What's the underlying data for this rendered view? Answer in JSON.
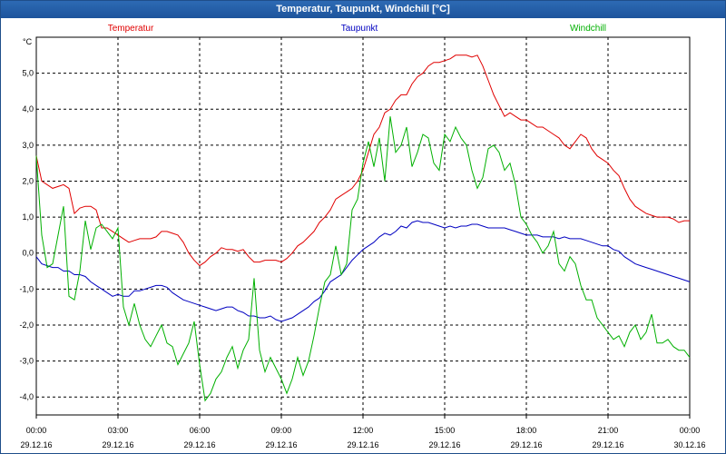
{
  "window": {
    "title": "Temperatur, Taupunkt, Windchill [°C]"
  },
  "chart_data": {
    "type": "line",
    "title": "Temperatur, Taupunkt, Windchill [°C]",
    "ylabel": "°C",
    "xlabel": "",
    "ylim": [
      -4.5,
      6.0
    ],
    "xlim": [
      0,
      24
    ],
    "grid": true,
    "yticks": [
      "5,0",
      "4,0",
      "3,0",
      "2,0",
      "1,0",
      "0,0",
      "-1,0",
      "-2,0",
      "-3,0",
      "-4,0"
    ],
    "ytick_values": [
      5,
      4,
      3,
      2,
      1,
      0,
      -1,
      -2,
      -3,
      -4
    ],
    "xticks": [
      {
        "time": "00:00",
        "date": "29.12.16",
        "hour": 0
      },
      {
        "time": "03:00",
        "date": "29.12.16",
        "hour": 3
      },
      {
        "time": "06:00",
        "date": "29.12.16",
        "hour": 6
      },
      {
        "time": "09:00",
        "date": "29.12.16",
        "hour": 9
      },
      {
        "time": "12:00",
        "date": "29.12.16",
        "hour": 12
      },
      {
        "time": "15:00",
        "date": "29.12.16",
        "hour": 15
      },
      {
        "time": "18:00",
        "date": "29.12.16",
        "hour": 18
      },
      {
        "time": "21:00",
        "date": "29.12.16",
        "hour": 21
      },
      {
        "time": "00:00",
        "date": "30.12.16",
        "hour": 24
      }
    ],
    "series": [
      {
        "name": "Temperatur",
        "color": "#e00000",
        "x": [
          0,
          0.2,
          0.4,
          0.6,
          0.8,
          1.0,
          1.2,
          1.4,
          1.6,
          1.8,
          2.0,
          2.2,
          2.4,
          2.6,
          2.8,
          3.0,
          3.2,
          3.4,
          3.6,
          3.8,
          4.0,
          4.2,
          4.4,
          4.6,
          4.8,
          5.0,
          5.2,
          5.4,
          5.6,
          5.8,
          6.0,
          6.2,
          6.4,
          6.6,
          6.8,
          7.0,
          7.2,
          7.4,
          7.6,
          7.8,
          8.0,
          8.2,
          8.4,
          8.6,
          8.8,
          9.0,
          9.2,
          9.4,
          9.6,
          9.8,
          10.0,
          10.2,
          10.4,
          10.6,
          10.8,
          11.0,
          11.2,
          11.4,
          11.6,
          11.8,
          12.0,
          12.2,
          12.4,
          12.6,
          12.8,
          13.0,
          13.2,
          13.4,
          13.6,
          13.8,
          14.0,
          14.2,
          14.4,
          14.6,
          14.8,
          15.0,
          15.2,
          15.4,
          15.6,
          15.8,
          16.0,
          16.2,
          16.4,
          16.6,
          16.8,
          17.0,
          17.2,
          17.4,
          17.6,
          17.8,
          18.0,
          18.2,
          18.4,
          18.6,
          18.8,
          19.0,
          19.2,
          19.4,
          19.6,
          19.8,
          20.0,
          20.2,
          20.4,
          20.6,
          20.8,
          21.0,
          21.2,
          21.4,
          21.6,
          21.8,
          22.0,
          22.2,
          22.4,
          22.6,
          22.8,
          23.0,
          23.2,
          23.4,
          23.6,
          23.8,
          24.0
        ],
        "values": [
          2.7,
          2.0,
          1.9,
          1.8,
          1.85,
          1.9,
          1.8,
          1.1,
          1.25,
          1.3,
          1.3,
          1.2,
          0.7,
          0.7,
          0.6,
          0.5,
          0.4,
          0.3,
          0.35,
          0.4,
          0.4,
          0.4,
          0.45,
          0.6,
          0.6,
          0.55,
          0.5,
          0.3,
          0.0,
          -0.2,
          -0.35,
          -0.25,
          -0.1,
          0.0,
          0.15,
          0.1,
          0.1,
          0.05,
          0.1,
          -0.1,
          -0.25,
          -0.25,
          -0.2,
          -0.2,
          -0.2,
          -0.25,
          -0.15,
          0.0,
          0.2,
          0.3,
          0.45,
          0.6,
          0.85,
          1.0,
          1.2,
          1.5,
          1.6,
          1.7,
          1.8,
          2.0,
          2.3,
          2.8,
          3.3,
          3.5,
          3.9,
          4.0,
          4.25,
          4.4,
          4.4,
          4.7,
          4.9,
          5.0,
          5.2,
          5.3,
          5.3,
          5.35,
          5.4,
          5.5,
          5.5,
          5.5,
          5.45,
          5.5,
          5.2,
          4.8,
          4.4,
          4.1,
          3.8,
          3.9,
          3.8,
          3.7,
          3.7,
          3.6,
          3.5,
          3.5,
          3.4,
          3.3,
          3.2,
          3.0,
          2.9,
          3.1,
          3.3,
          3.2,
          2.9,
          2.7,
          2.6,
          2.5,
          2.3,
          2.15,
          1.8,
          1.5,
          1.3,
          1.2,
          1.1,
          1.05,
          1.0,
          1.0,
          1.0,
          0.95,
          0.85,
          0.9,
          0.9
        ]
      },
      {
        "name": "Taupunkt",
        "color": "#0000c0",
        "x": [
          0,
          0.2,
          0.4,
          0.6,
          0.8,
          1.0,
          1.2,
          1.4,
          1.6,
          1.8,
          2.0,
          2.2,
          2.4,
          2.6,
          2.8,
          3.0,
          3.2,
          3.4,
          3.6,
          3.8,
          4.0,
          4.2,
          4.4,
          4.6,
          4.8,
          5.0,
          5.2,
          5.4,
          5.6,
          5.8,
          6.0,
          6.2,
          6.4,
          6.6,
          6.8,
          7.0,
          7.2,
          7.4,
          7.6,
          7.8,
          8.0,
          8.2,
          8.4,
          8.6,
          8.8,
          9.0,
          9.2,
          9.4,
          9.6,
          9.8,
          10.0,
          10.2,
          10.4,
          10.6,
          10.8,
          11.0,
          11.2,
          11.4,
          11.6,
          11.8,
          12.0,
          12.2,
          12.4,
          12.6,
          12.8,
          13.0,
          13.2,
          13.4,
          13.6,
          13.8,
          14.0,
          14.2,
          14.4,
          14.6,
          14.8,
          15.0,
          15.2,
          15.4,
          15.6,
          15.8,
          16.0,
          16.2,
          16.4,
          16.6,
          16.8,
          17.0,
          17.2,
          17.4,
          17.6,
          17.8,
          18.0,
          18.2,
          18.4,
          18.6,
          18.8,
          19.0,
          19.2,
          19.4,
          19.6,
          19.8,
          20.0,
          20.2,
          20.4,
          20.6,
          20.8,
          21.0,
          21.2,
          21.4,
          21.6,
          21.8,
          22.0,
          22.2,
          22.4,
          22.6,
          22.8,
          23.0,
          23.2,
          23.4,
          23.6,
          23.8,
          24.0
        ],
        "values": [
          -0.1,
          -0.3,
          -0.35,
          -0.4,
          -0.4,
          -0.5,
          -0.5,
          -0.6,
          -0.6,
          -0.65,
          -0.8,
          -0.9,
          -1.0,
          -1.1,
          -1.2,
          -1.15,
          -1.2,
          -1.2,
          -1.05,
          -1.05,
          -1.0,
          -0.95,
          -0.9,
          -0.9,
          -0.95,
          -1.1,
          -1.2,
          -1.3,
          -1.35,
          -1.4,
          -1.45,
          -1.5,
          -1.55,
          -1.6,
          -1.55,
          -1.5,
          -1.5,
          -1.6,
          -1.65,
          -1.75,
          -1.75,
          -1.8,
          -1.8,
          -1.75,
          -1.85,
          -1.9,
          -1.85,
          -1.8,
          -1.7,
          -1.6,
          -1.5,
          -1.35,
          -1.25,
          -1.05,
          -0.8,
          -0.7,
          -0.6,
          -0.4,
          -0.2,
          -0.05,
          0.1,
          0.2,
          0.3,
          0.45,
          0.55,
          0.5,
          0.6,
          0.75,
          0.7,
          0.85,
          0.9,
          0.85,
          0.85,
          0.8,
          0.75,
          0.7,
          0.75,
          0.7,
          0.75,
          0.75,
          0.8,
          0.8,
          0.75,
          0.7,
          0.7,
          0.7,
          0.7,
          0.65,
          0.6,
          0.55,
          0.5,
          0.5,
          0.5,
          0.45,
          0.45,
          0.45,
          0.4,
          0.45,
          0.4,
          0.4,
          0.4,
          0.35,
          0.3,
          0.25,
          0.2,
          0.2,
          0.1,
          0.05,
          -0.1,
          -0.2,
          -0.3,
          -0.35,
          -0.4,
          -0.45,
          -0.5,
          -0.55,
          -0.6,
          -0.65,
          -0.7,
          -0.75,
          -0.8
        ]
      },
      {
        "name": "Windchill",
        "color": "#00b000",
        "x": [
          0,
          0.2,
          0.4,
          0.6,
          0.8,
          1.0,
          1.2,
          1.4,
          1.6,
          1.8,
          2.0,
          2.2,
          2.4,
          2.6,
          2.8,
          3.0,
          3.2,
          3.4,
          3.6,
          3.8,
          4.0,
          4.2,
          4.4,
          4.6,
          4.8,
          5.0,
          5.2,
          5.4,
          5.6,
          5.8,
          6.0,
          6.2,
          6.4,
          6.6,
          6.8,
          7.0,
          7.2,
          7.4,
          7.6,
          7.8,
          8.0,
          8.2,
          8.4,
          8.6,
          8.8,
          9.0,
          9.2,
          9.4,
          9.6,
          9.8,
          10.0,
          10.2,
          10.4,
          10.6,
          10.8,
          11.0,
          11.2,
          11.4,
          11.6,
          11.8,
          12.0,
          12.2,
          12.4,
          12.6,
          12.8,
          13.0,
          13.2,
          13.4,
          13.6,
          13.8,
          14.0,
          14.2,
          14.4,
          14.6,
          14.8,
          15.0,
          15.2,
          15.4,
          15.6,
          15.8,
          16.0,
          16.2,
          16.4,
          16.6,
          16.8,
          17.0,
          17.2,
          17.4,
          17.6,
          17.8,
          18.0,
          18.2,
          18.4,
          18.6,
          18.8,
          19.0,
          19.2,
          19.4,
          19.6,
          19.8,
          20.0,
          20.2,
          20.4,
          20.6,
          20.8,
          21.0,
          21.2,
          21.4,
          21.6,
          21.8,
          22.0,
          22.2,
          22.4,
          22.6,
          22.8,
          23.0,
          23.2,
          23.4,
          23.6,
          23.8,
          24.0
        ],
        "values": [
          2.7,
          0.5,
          -0.4,
          -0.3,
          0.5,
          1.3,
          -1.2,
          -1.3,
          -0.5,
          0.9,
          0.1,
          0.7,
          0.8,
          0.6,
          0.4,
          0.7,
          -1.5,
          -2.0,
          -1.4,
          -2.0,
          -2.4,
          -2.6,
          -2.3,
          -2.0,
          -2.5,
          -2.6,
          -3.1,
          -2.8,
          -2.5,
          -1.9,
          -3.1,
          -4.1,
          -3.9,
          -3.5,
          -3.3,
          -2.9,
          -2.6,
          -3.2,
          -2.7,
          -2.4,
          -0.7,
          -2.7,
          -3.3,
          -2.9,
          -3.2,
          -3.5,
          -3.9,
          -3.5,
          -2.9,
          -3.4,
          -3.0,
          -2.3,
          -1.5,
          -0.8,
          -0.6,
          0.2,
          -0.6,
          -0.3,
          1.2,
          1.5,
          2.5,
          3.1,
          2.4,
          3.2,
          2.0,
          3.8,
          2.8,
          3.0,
          3.5,
          2.4,
          2.8,
          3.3,
          3.2,
          2.5,
          2.3,
          3.3,
          3.1,
          3.5,
          3.2,
          3.0,
          2.3,
          1.8,
          2.1,
          2.9,
          3.0,
          2.8,
          2.3,
          2.5,
          1.9,
          1.0,
          0.8,
          0.5,
          0.3,
          0.0,
          0.2,
          0.6,
          -0.3,
          -0.5,
          -0.1,
          -0.3,
          -0.9,
          -1.3,
          -1.3,
          -1.8,
          -2.0,
          -2.2,
          -2.4,
          -2.3,
          -2.6,
          -2.2,
          -2.0,
          -2.4,
          -2.2,
          -1.7,
          -2.5,
          -2.5,
          -2.4,
          -2.6,
          -2.7,
          -2.7,
          -2.9
        ]
      }
    ]
  }
}
